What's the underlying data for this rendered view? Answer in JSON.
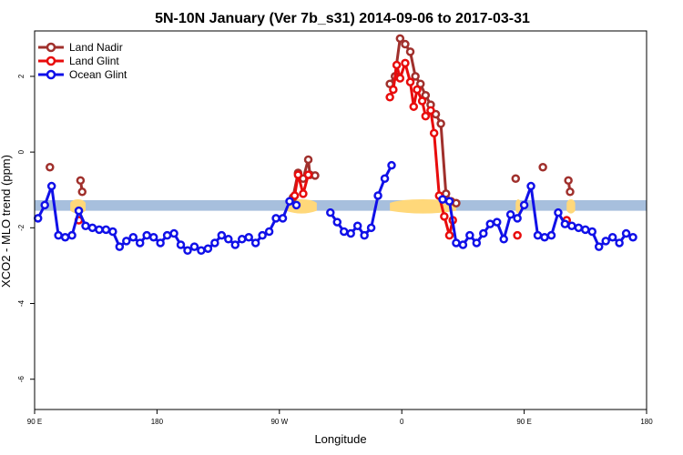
{
  "chart_data": {
    "type": "line",
    "title": "5N-10N January (Ver 7b_s31)   2014-09-06 to 2017-03-31",
    "xlabel": "Longitude",
    "ylabel": "XCO2 - MLO trend (ppm)",
    "xlim": [
      90,
      450
    ],
    "ylim": [
      -6.8,
      3.2
    ],
    "x_ticks": [
      {
        "value": 90,
        "label": "90 E"
      },
      {
        "value": 162,
        "label": "180"
      },
      {
        "value": 234,
        "label": "90 W"
      },
      {
        "value": 306,
        "label": "0"
      },
      {
        "value": 378,
        "label": "90 E"
      },
      {
        "value": 450,
        "label": "180"
      }
    ],
    "y_ticks": [
      {
        "value": 2,
        "label": "2"
      },
      {
        "value": 0,
        "label": "0"
      },
      {
        "value": -2,
        "label": "-2"
      },
      {
        "value": -4,
        "label": "-4"
      },
      {
        "value": -6,
        "label": "-6"
      }
    ],
    "band": {
      "y_low": -1.55,
      "y_high": -1.27,
      "color": "#a7bfdd"
    },
    "land_fill_color": "#ffd87a",
    "land_regions": [
      {
        "start": 111,
        "end": 120
      },
      {
        "start": 238,
        "end": 256
      },
      {
        "start": 299,
        "end": 338
      },
      {
        "start": 373,
        "end": 376
      },
      {
        "start": 403,
        "end": 408
      }
    ],
    "legend": {
      "position": "top-left",
      "entries": [
        {
          "label": "Land Nadir",
          "color": "#a0302c"
        },
        {
          "label": "Land Glint",
          "color": "#e80c0c"
        },
        {
          "label": "Ocean Glint",
          "color": "#1010e8"
        }
      ]
    },
    "series": [
      {
        "name": "Land Nadir",
        "color": "#a0302c",
        "segments": [
          [
            [
              99,
              -0.4
            ]
          ],
          [
            [
              117,
              -0.75
            ],
            [
              118,
              -1.05
            ]
          ],
          [
            [
              242,
              -1.2
            ],
            [
              245,
              -0.55
            ],
            [
              248,
              -0.7
            ],
            [
              251,
              -0.2
            ],
            [
              252,
              -0.6
            ],
            [
              255,
              -0.62
            ]
          ],
          [
            [
              299,
              1.8
            ],
            [
              302,
              2.0
            ],
            [
              305,
              3.0
            ],
            [
              308,
              2.85
            ],
            [
              311,
              2.65
            ],
            [
              314,
              2.0
            ],
            [
              317,
              1.8
            ],
            [
              320,
              1.5
            ],
            [
              323,
              1.25
            ],
            [
              326,
              1.0
            ],
            [
              329,
              0.75
            ],
            [
              332,
              -1.1
            ],
            [
              335,
              -1.3
            ],
            [
              338,
              -1.35
            ]
          ],
          [
            [
              373,
              -0.7
            ]
          ],
          [
            [
              389,
              -0.4
            ]
          ],
          [
            [
              404,
              -0.75
            ],
            [
              405,
              -1.05
            ]
          ]
        ]
      },
      {
        "name": "Land Glint",
        "color": "#e80c0c",
        "segments": [
          [
            [
              116,
              -1.8
            ]
          ],
          [
            [
              243,
              -1.15
            ],
            [
              245,
              -0.6
            ],
            [
              248,
              -1.1
            ],
            [
              251,
              -0.6
            ]
          ],
          [
            [
              299,
              1.45
            ],
            [
              301,
              1.65
            ],
            [
              303,
              2.3
            ],
            [
              305,
              1.95
            ],
            [
              308,
              2.35
            ],
            [
              311,
              1.85
            ],
            [
              313,
              1.2
            ],
            [
              315,
              1.65
            ],
            [
              318,
              1.35
            ],
            [
              320,
              0.95
            ],
            [
              323,
              1.1
            ],
            [
              325,
              0.5
            ],
            [
              328,
              -1.15
            ],
            [
              331,
              -1.7
            ],
            [
              334,
              -2.2
            ],
            [
              336,
              -1.8
            ]
          ],
          [
            [
              374,
              -2.2
            ]
          ],
          [
            [
              403,
              -1.8
            ]
          ]
        ]
      },
      {
        "name": "Ocean Glint",
        "color": "#1010e8",
        "segments": [
          [
            [
              92,
              -1.75
            ],
            [
              96,
              -1.4
            ],
            [
              100,
              -0.9
            ],
            [
              104,
              -2.2
            ],
            [
              108,
              -2.25
            ],
            [
              112,
              -2.2
            ],
            [
              116,
              -1.55
            ],
            [
              120,
              -1.95
            ],
            [
              124,
              -2.0
            ],
            [
              128,
              -2.05
            ],
            [
              132,
              -2.05
            ],
            [
              136,
              -2.1
            ],
            [
              140,
              -2.5
            ],
            [
              144,
              -2.35
            ],
            [
              148,
              -2.25
            ],
            [
              152,
              -2.4
            ],
            [
              156,
              -2.2
            ],
            [
              160,
              -2.25
            ],
            [
              164,
              -2.4
            ],
            [
              168,
              -2.2
            ],
            [
              172,
              -2.15
            ],
            [
              176,
              -2.45
            ],
            [
              180,
              -2.6
            ],
            [
              184,
              -2.5
            ],
            [
              188,
              -2.6
            ],
            [
              192,
              -2.55
            ],
            [
              196,
              -2.4
            ],
            [
              200,
              -2.2
            ],
            [
              204,
              -2.3
            ],
            [
              208,
              -2.45
            ],
            [
              212,
              -2.3
            ],
            [
              216,
              -2.25
            ],
            [
              220,
              -2.4
            ],
            [
              224,
              -2.2
            ],
            [
              228,
              -2.1
            ],
            [
              232,
              -1.75
            ],
            [
              236,
              -1.75
            ],
            [
              240,
              -1.3
            ],
            [
              244,
              -1.4
            ]
          ],
          [
            [
              264,
              -1.6
            ],
            [
              268,
              -1.85
            ],
            [
              272,
              -2.1
            ],
            [
              276,
              -2.15
            ],
            [
              280,
              -1.95
            ],
            [
              284,
              -2.2
            ],
            [
              288,
              -2.0
            ],
            [
              292,
              -1.15
            ],
            [
              296,
              -0.7
            ],
            [
              300,
              -0.35
            ]
          ],
          [
            [
              330,
              -1.25
            ],
            [
              334,
              -1.3
            ],
            [
              338,
              -2.4
            ],
            [
              342,
              -2.45
            ],
            [
              346,
              -2.2
            ],
            [
              350,
              -2.4
            ],
            [
              354,
              -2.15
            ],
            [
              358,
              -1.9
            ],
            [
              362,
              -1.85
            ],
            [
              366,
              -2.3
            ],
            [
              370,
              -1.65
            ],
            [
              374,
              -1.75
            ],
            [
              378,
              -1.4
            ],
            [
              382,
              -0.9
            ],
            [
              386,
              -2.2
            ],
            [
              390,
              -2.25
            ],
            [
              394,
              -2.2
            ],
            [
              398,
              -1.6
            ],
            [
              402,
              -1.9
            ],
            [
              406,
              -1.95
            ],
            [
              410,
              -2.0
            ],
            [
              414,
              -2.05
            ],
            [
              418,
              -2.1
            ],
            [
              422,
              -2.5
            ],
            [
              426,
              -2.35
            ],
            [
              430,
              -2.25
            ],
            [
              434,
              -2.4
            ],
            [
              438,
              -2.15
            ],
            [
              442,
              -2.25
            ]
          ]
        ]
      }
    ]
  }
}
